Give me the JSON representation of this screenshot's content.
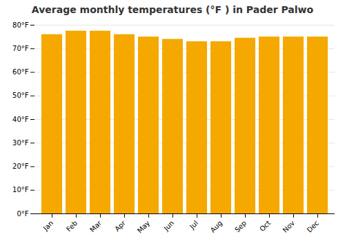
{
  "chart_data": {
    "type": "bar",
    "title": "Average monthly temperatures (°F ) in Pader Palwo",
    "categories": [
      "Jan",
      "Feb",
      "Mar",
      "Apr",
      "May",
      "Jun",
      "Jul",
      "Aug",
      "Sep",
      "Oct",
      "Nov",
      "Dec"
    ],
    "values": [
      76.0,
      77.5,
      77.5,
      76.0,
      75.0,
      74.0,
      73.0,
      73.0,
      74.5,
      75.0,
      75.0,
      75.0
    ],
    "color": "#F5A800",
    "ylim": [
      0,
      80
    ],
    "yticks": [
      {
        "value": 0,
        "label": "0°F"
      },
      {
        "value": 10,
        "label": "10°F"
      },
      {
        "value": 20,
        "label": "20°F"
      },
      {
        "value": 30,
        "label": "30°F"
      },
      {
        "value": 40,
        "label": "40°F"
      },
      {
        "value": 50,
        "label": "50°F"
      },
      {
        "value": 60,
        "label": "60°F"
      },
      {
        "value": 70,
        "label": "70°F"
      },
      {
        "value": 80,
        "label": "80°F"
      }
    ],
    "grid": true
  }
}
